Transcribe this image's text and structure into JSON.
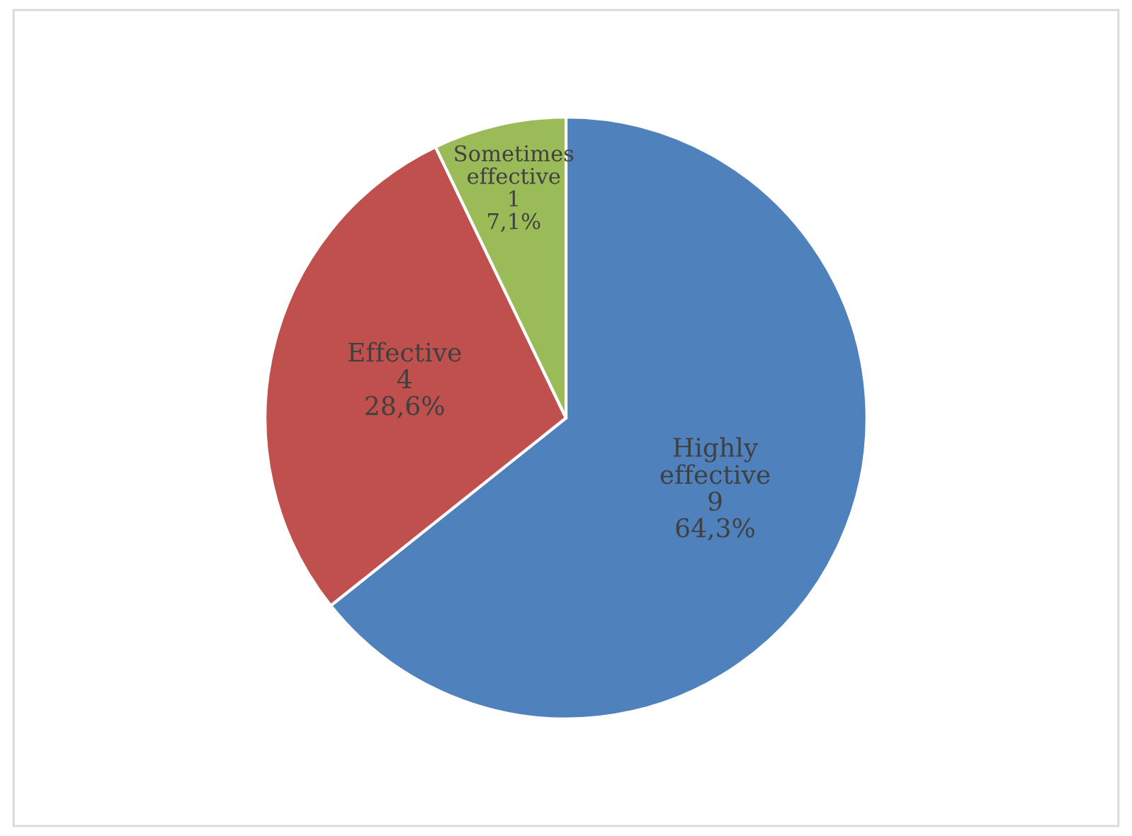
{
  "chart_data": {
    "type": "pie",
    "categories": [
      "Highly effective",
      "Effective",
      "Sometimes effective"
    ],
    "values": [
      9,
      4,
      1
    ],
    "colors": [
      "#4f81bd",
      "#c0504d",
      "#9bbb59"
    ],
    "value_labels": [
      "9\n64,3%",
      "4\n28,6%",
      "1\n7,1%"
    ]
  }
}
